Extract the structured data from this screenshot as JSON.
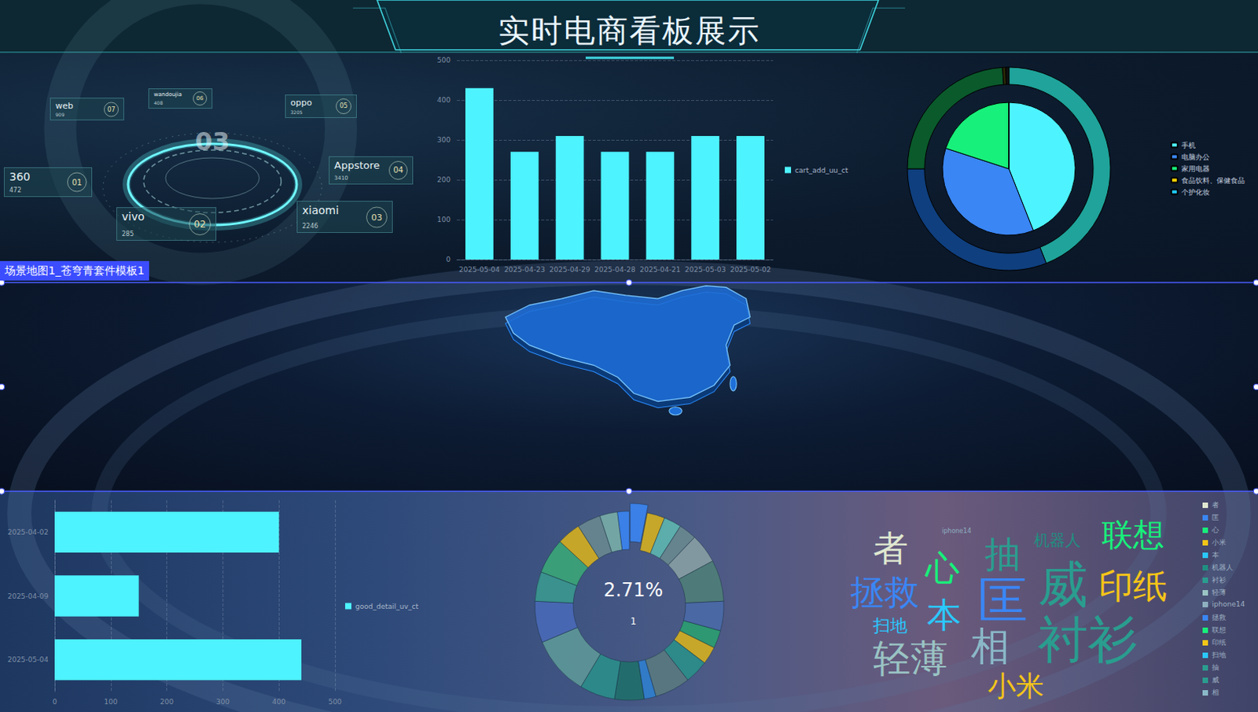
{
  "title": "实时电商看板展示",
  "map_tag": "场景地图1_苍穹青套件模板1",
  "channel_ranking": {
    "center": "03",
    "items": [
      {
        "name": "360",
        "value": 472,
        "rank": "01"
      },
      {
        "name": "vivo",
        "value": 285,
        "rank": "02"
      },
      {
        "name": "xiaomi",
        "value": 2246,
        "rank": "03"
      },
      {
        "name": "Appstore",
        "value": 3410,
        "rank": "04"
      },
      {
        "name": "oppo",
        "value": 3205,
        "rank": "05"
      },
      {
        "name": "wandoujia",
        "value": 408,
        "rank": "06"
      },
      {
        "name": "web",
        "value": 909,
        "rank": "07"
      }
    ]
  },
  "chart_data": [
    {
      "type": "bar",
      "categories": [
        "2025-05-04",
        "2025-04-23",
        "2025-04-29",
        "2025-04-28",
        "2025-04-21",
        "2025-05-03",
        "2025-05-02"
      ],
      "series": [
        {
          "name": "cart_add_uu_ct",
          "color": "#4df3ff",
          "values": [
            430,
            270,
            310,
            270,
            270,
            310,
            310
          ]
        }
      ],
      "ylim": [
        0,
        500
      ],
      "yticks": [
        0,
        100,
        200,
        300,
        400,
        500
      ],
      "grid": true,
      "legend": "right"
    },
    {
      "type": "pie",
      "categories": [
        "手机",
        "电脑办公",
        "家用电器",
        "食品饮料、保健食品",
        "个护化妆"
      ],
      "series": [
        {
          "values": [
            44,
            36,
            20,
            0,
            0
          ],
          "colors": [
            "#4df3ff",
            "#3a86f5",
            "#17f07a",
            "#f5d000",
            "#1ec8ff"
          ]
        },
        {
          "values": [
            44,
            31,
            24,
            0.5,
            0.5
          ],
          "colors": [
            "#1fa39a",
            "#0f3f7e",
            "#0a5a2c",
            "#2a2a08",
            "#111111"
          ]
        }
      ],
      "legend": "right"
    },
    {
      "type": "bar",
      "orientation": "horizontal",
      "categories": [
        "2025-05-04",
        "2025-04-09",
        "2025-04-02"
      ],
      "series": [
        {
          "name": "good_detail_uv_ct",
          "color": "#4df3ff",
          "values": [
            440,
            150,
            400
          ]
        }
      ],
      "xlim": [
        0,
        500
      ],
      "xticks": [
        0,
        100,
        200,
        300,
        400,
        500
      ],
      "grid": true,
      "legend": "right"
    },
    {
      "type": "pie",
      "title": "2.71%",
      "subtitle": "1",
      "values": [
        3,
        3,
        3,
        3,
        5,
        7,
        5,
        3,
        3,
        4,
        6,
        2,
        5,
        6,
        10,
        7,
        5,
        6,
        4,
        4,
        3,
        2
      ],
      "colors": [
        "#3a86f5",
        "#d8b21c",
        "#5fb8b0",
        "#6a8a90",
        "#8aa0a4",
        "#4f7f78",
        "#4a6aa8",
        "#2aa070",
        "#d8b21c",
        "#2a8f8a",
        "#5a7a80",
        "#2f7fd0",
        "#1f6f6a",
        "#2a8f8a",
        "#5f9a98",
        "#4a6ab8",
        "#3a9a90",
        "#3aa878",
        "#d8b21c",
        "#6a8a90",
        "#7ab0a8",
        "#3a86f5"
      ]
    },
    {
      "type": "wordcloud",
      "words": [
        "者",
        "匡",
        "心",
        "小米",
        "本",
        "机器人",
        "衬衫",
        "轻薄",
        "iphone14",
        "拯救",
        "联想",
        "印纸",
        "扫地",
        "抽",
        "威",
        "相"
      ],
      "values": [
        45,
        64,
        44,
        36,
        44,
        20,
        64,
        48,
        8,
        44,
        40,
        44,
        22,
        46,
        64,
        50
      ],
      "colors": [
        "#dfe8d0",
        "#3a86f5",
        "#17f07a",
        "#f5c518",
        "#2ac8ff",
        "#1f8f80",
        "#2a9d8f",
        "#9ac4c4",
        "#8fb0c0",
        "#3a86f5",
        "#17f07a",
        "#f5c518",
        "#2ac8ff",
        "#2a9d8f",
        "#2a9d8f",
        "#8ab8c8"
      ],
      "legend": "right"
    }
  ]
}
